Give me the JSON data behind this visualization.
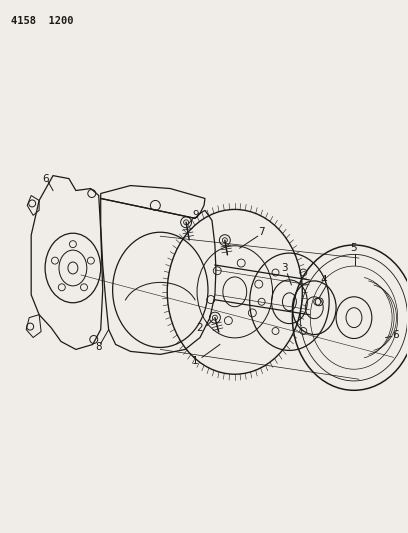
{
  "title_text": "4158  1200",
  "bg_color": "#f0ede8",
  "line_color": "#1a1a1a",
  "label_color": "#1a1a1a",
  "title_fontsize": 7.5,
  "label_fontsize": 7.5
}
